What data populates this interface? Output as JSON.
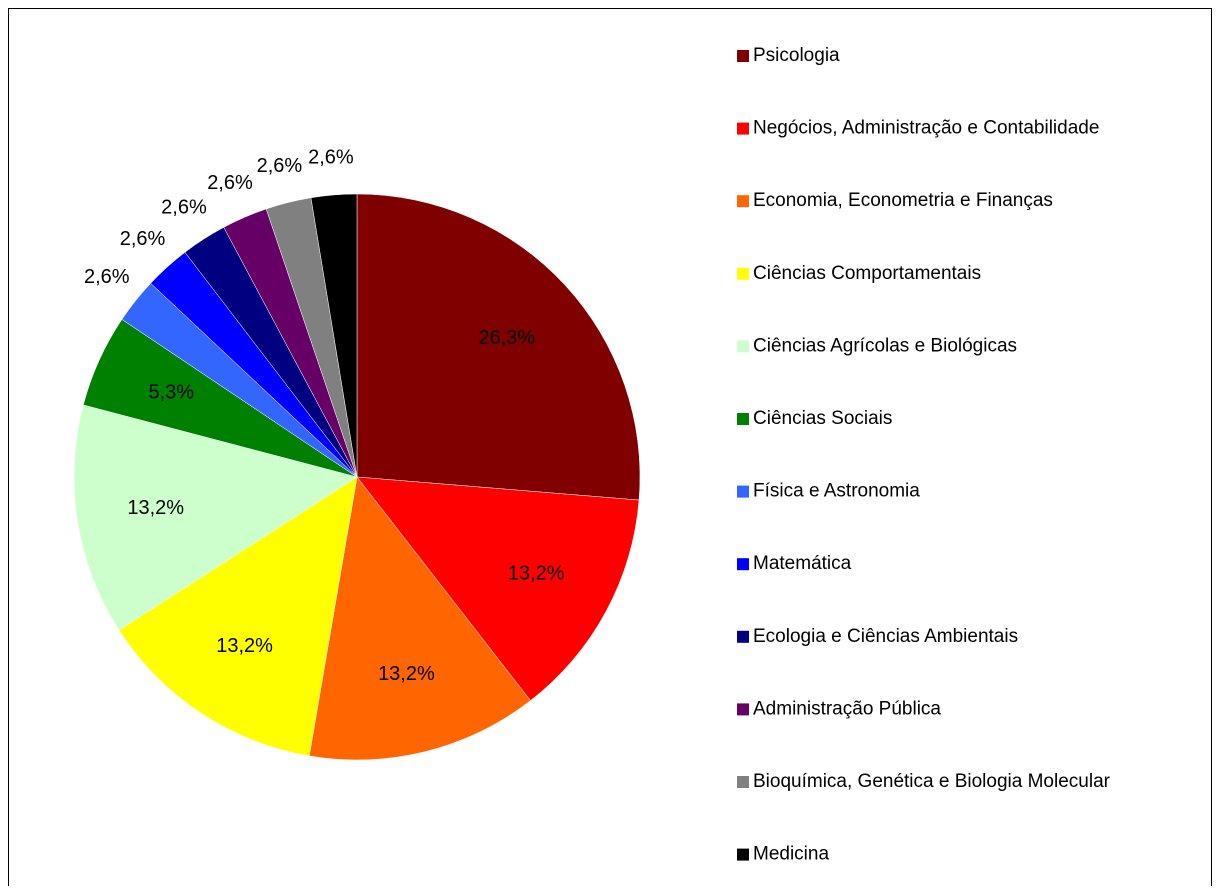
{
  "chart_data": {
    "type": "pie",
    "categories": [
      "Psicologia",
      "Negócios, Administração e Contabilidade",
      "Economia, Econometria e Finanças",
      "Ciências Comportamentais",
      "Ciências Agrícolas e Biológicas",
      "Ciências Sociais",
      "Física e Astronomia",
      "Matemática",
      "Ecologia e Ciências Ambientais",
      "Administração Pública",
      "Bioquímica, Genética e Biologia Molecular",
      "Medicina"
    ],
    "values": [
      26.3,
      13.2,
      13.2,
      13.2,
      13.2,
      5.3,
      2.6,
      2.6,
      2.6,
      2.6,
      2.6,
      2.6
    ],
    "value_labels": [
      "26,3%",
      "13,2%",
      "13,2%",
      "13,2%",
      "13,2%",
      "5,3%",
      "2,6%",
      "2,6%",
      "2,6%",
      "2,6%",
      "2,6%",
      "2,6%"
    ],
    "colors": [
      "#800000",
      "#ff0000",
      "#ff6600",
      "#ffff00",
      "#ccffcc",
      "#008000",
      "#3366ff",
      "#0000ff",
      "#000080",
      "#660066",
      "#808080",
      "#000000"
    ],
    "legend": "right"
  }
}
